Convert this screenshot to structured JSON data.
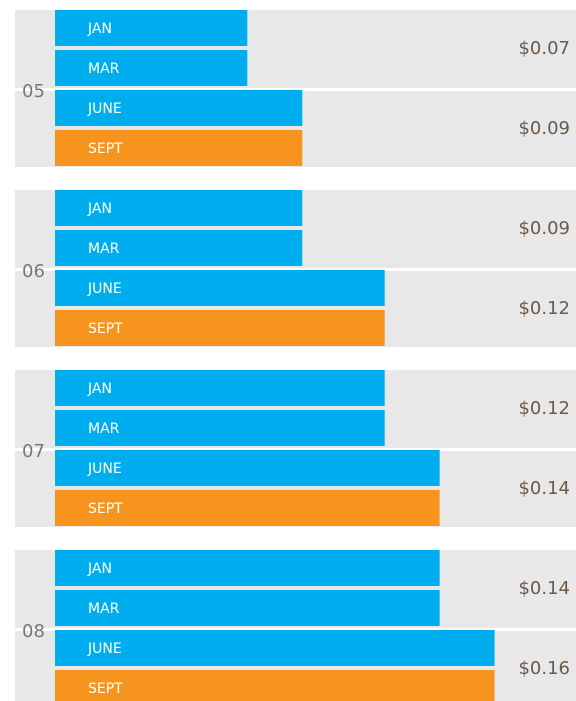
{
  "chart_data": {
    "type": "grouped-hbar",
    "xlim": [
      0,
      0.19
    ],
    "bar_colors": [
      "#00aeef",
      "#00aeef",
      "#00aeef",
      "#f7941d"
    ],
    "groups": [
      {
        "name": "05",
        "pairs": [
          {
            "categories": [
              "JAN",
              "MAR"
            ],
            "value": 0.07,
            "value_label": "$0.07"
          },
          {
            "categories": [
              "JUNE",
              "SEPT"
            ],
            "value": 0.09,
            "value_label": "$0.09"
          }
        ]
      },
      {
        "name": "06",
        "pairs": [
          {
            "categories": [
              "JAN",
              "MAR"
            ],
            "value": 0.09,
            "value_label": "$0.09"
          },
          {
            "categories": [
              "JUNE",
              "SEPT"
            ],
            "value": 0.12,
            "value_label": "$0.12"
          }
        ]
      },
      {
        "name": "07",
        "pairs": [
          {
            "categories": [
              "JAN",
              "MAR"
            ],
            "value": 0.12,
            "value_label": "$0.12"
          },
          {
            "categories": [
              "JUNE",
              "SEPT"
            ],
            "value": 0.14,
            "value_label": "$0.14"
          }
        ]
      },
      {
        "name": "08",
        "pairs": [
          {
            "categories": [
              "JAN",
              "MAR"
            ],
            "value": 0.14,
            "value_label": "$0.14"
          },
          {
            "categories": [
              "JUNE",
              "SEPT"
            ],
            "value": 0.16,
            "value_label": "$0.16"
          }
        ]
      }
    ]
  }
}
